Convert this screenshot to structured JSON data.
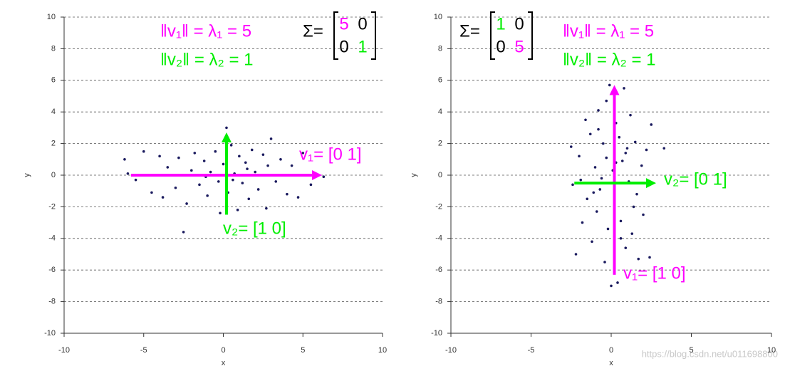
{
  "chart_data": [
    {
      "type": "scatter",
      "x_label": "x",
      "y_label": "y",
      "color": "#1a1a5e",
      "xlim": [
        -10,
        10
      ],
      "ylim": [
        -10,
        10
      ],
      "xticks": [
        -10,
        -5,
        0,
        5,
        10
      ],
      "yticks": [
        -10,
        -8,
        -6,
        -4,
        -2,
        0,
        2,
        4,
        6,
        8,
        10
      ],
      "grid": true,
      "x": [
        -6.2,
        -6,
        -5.5,
        -5,
        -4.5,
        -4,
        -3.5,
        -3,
        -2.8,
        -2.5,
        -2.3,
        -2,
        -1.8,
        -1.5,
        -1.2,
        -1,
        -0.8,
        -0.5,
        -0.3,
        0,
        0.2,
        0.3,
        0.5,
        0.7,
        0.9,
        1,
        1.2,
        1.4,
        1.6,
        1.8,
        2,
        2.2,
        2.5,
        2.7,
        3,
        3.3,
        3.6,
        4,
        4.3,
        4.7,
        5,
        5.5,
        6.3,
        -3.8,
        -2.6,
        -1.1,
        0.6,
        1.5,
        2.8,
        -0.2
      ],
      "values": [
        1.0,
        0.1,
        -0.3,
        1.5,
        -1.1,
        1.2,
        0.5,
        -0.8,
        1.1,
        -3.6,
        -1.8,
        0.3,
        1.4,
        -0.6,
        0.9,
        -1.3,
        0.2,
        1.5,
        -0.4,
        0.7,
        3.0,
        -1.1,
        1.9,
        0.1,
        -2.2,
        1.2,
        -0.5,
        0.8,
        -1.5,
        1.6,
        0.2,
        -0.9,
        1.3,
        -2.1,
        2.3,
        -0.4,
        1.0,
        -1.2,
        0.6,
        -1.4,
        1.4,
        -0.6,
        -0.1,
        -1.4,
        0.0,
        -0.1,
        -0.3,
        0.4,
        0.6,
        -2.4
      ],
      "arrows": [
        {
          "color": "#ff00ff",
          "x": [
            -5.8,
            6.2
          ],
          "y": [
            0,
            0
          ]
        },
        {
          "color": "#00ee00",
          "x": [
            0.2,
            0.2
          ],
          "y": [
            -2.5,
            2.7
          ]
        }
      ],
      "annotations": [
        {
          "text": "‖v₁‖ = λ₁ = 5",
          "color": "#ff00ff"
        },
        {
          "text": "‖v₂‖ = λ₂ = 1",
          "color": "#00ee00"
        },
        {
          "text": "v₁= [0 1]",
          "color": "#ff00ff"
        },
        {
          "text": "v₂= [1 0]",
          "color": "#00ee00"
        }
      ],
      "matrix": {
        "label": "Σ=",
        "values": [
          [
            5,
            0
          ],
          [
            0,
            1
          ]
        ],
        "colors": [
          [
            "#ff00ff",
            "#000000"
          ],
          [
            "#000000",
            "#00ee00"
          ]
        ]
      }
    },
    {
      "type": "scatter",
      "x_label": "x",
      "y_label": "y",
      "color": "#1a1a5e",
      "xlim": [
        -10,
        10
      ],
      "ylim": [
        -10,
        10
      ],
      "xticks": [
        -10,
        -5,
        0,
        5,
        10
      ],
      "yticks": [
        -10,
        -8,
        -6,
        -4,
        -2,
        0,
        2,
        4,
        6,
        8,
        10
      ],
      "grid": true,
      "x": [
        -2.5,
        -2.4,
        -2.2,
        -2,
        -1.8,
        -1.6,
        -1.5,
        -1.3,
        -1.2,
        -1,
        -0.9,
        -0.8,
        -0.7,
        -0.5,
        -0.4,
        -0.3,
        -0.2,
        -0.1,
        0,
        0.1,
        0.2,
        0.3,
        0.4,
        0.5,
        0.6,
        0.7,
        0.8,
        0.9,
        1,
        1.1,
        1.2,
        1.3,
        1.5,
        1.6,
        1.7,
        1.9,
        2,
        2.2,
        2.4,
        2.5,
        3.3,
        -0.6,
        0.3,
        -1.1,
        0.9,
        -0.3,
        1.4,
        -1.9,
        0.6,
        -0.8
      ],
      "values": [
        1.8,
        -0.6,
        -5,
        1.2,
        -3,
        3.5,
        -1.5,
        2.6,
        -4.2,
        0.5,
        -2.3,
        4.1,
        -0.9,
        2.0,
        -5.5,
        1.1,
        -3.4,
        5.7,
        -7,
        0.3,
        -1.8,
        3.3,
        -6.8,
        2.4,
        -2.9,
        0.9,
        5.5,
        -4.6,
        1.7,
        -0.4,
        3.8,
        -3.7,
        2.1,
        -1.2,
        -5.3,
        0.6,
        -2.5,
        1.6,
        -5.2,
        3.2,
        1.7,
        -0.2,
        0.8,
        -1.1,
        1.4,
        4.7,
        -2.0,
        -0.3,
        -4.0,
        2.9
      ],
      "arrows": [
        {
          "color": "#ff00ff",
          "x": [
            0.2,
            0.2
          ],
          "y": [
            -6.3,
            5.7
          ]
        },
        {
          "color": "#00ee00",
          "x": [
            -2.3,
            2.8
          ],
          "y": [
            -0.5,
            -0.5
          ]
        }
      ],
      "annotations": [
        {
          "text": "‖v₁‖ = λ₁ = 5",
          "color": "#ff00ff"
        },
        {
          "text": "‖v₂‖ = λ₂ = 1",
          "color": "#00ee00"
        },
        {
          "text": "v₂= [0 1]",
          "color": "#00ee00"
        },
        {
          "text": "v₁= [1 0]",
          "color": "#ff00ff"
        }
      ],
      "matrix": {
        "label": "Σ=",
        "values": [
          [
            1,
            0
          ],
          [
            0,
            5
          ]
        ],
        "colors": [
          [
            "#00ee00",
            "#000000"
          ],
          [
            "#000000",
            "#ff00ff"
          ]
        ]
      }
    }
  ],
  "watermark": "https://blog.csdn.net/u011698800"
}
